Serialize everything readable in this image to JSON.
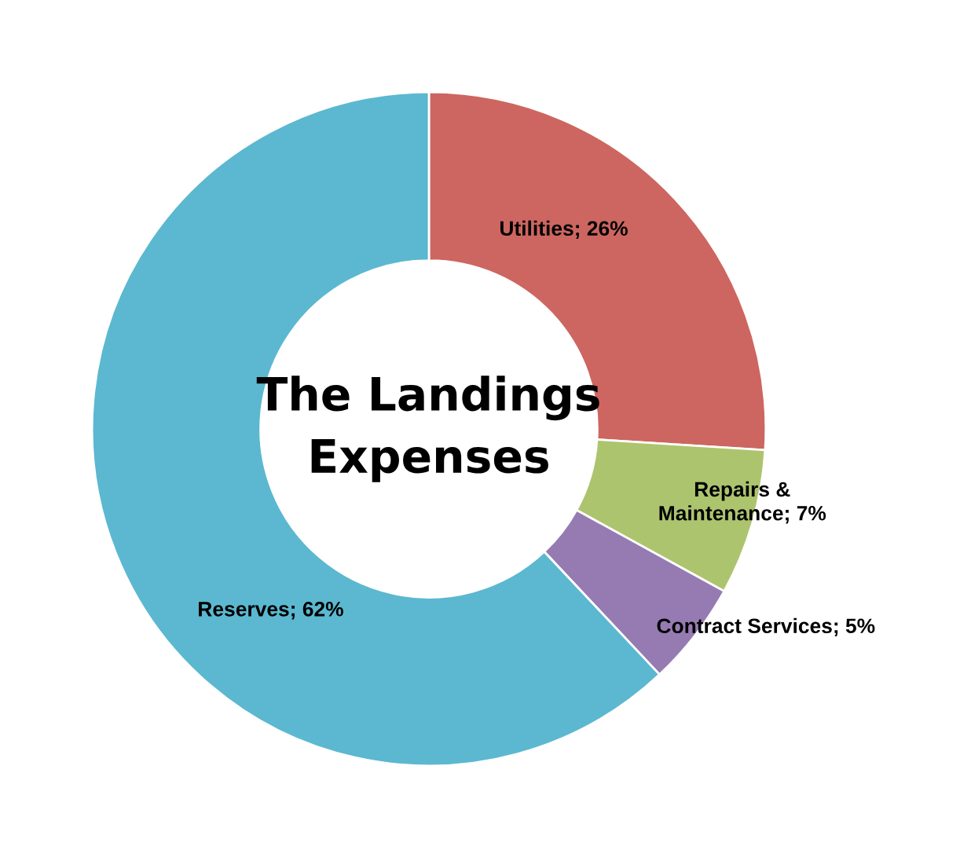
{
  "chart_data": {
    "type": "donut",
    "title": "The Landings Expenses",
    "categories": [
      "Utilities",
      "Repairs & Maintenance",
      "Contract Services",
      "Reserves"
    ],
    "values": [
      26,
      7,
      5,
      62
    ],
    "colors": [
      "#cd6660",
      "#adc46e",
      "#967bb3",
      "#5bb8d0"
    ],
    "value_labels": [
      "26%",
      "7%",
      "5%",
      "62%"
    ],
    "legend": false
  }
}
